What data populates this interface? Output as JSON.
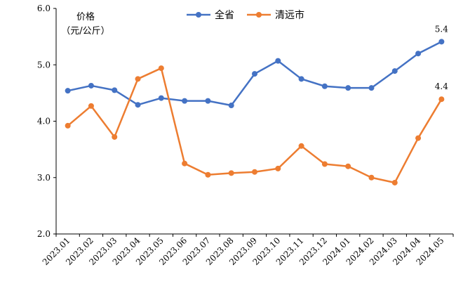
{
  "chart_data": {
    "type": "line",
    "ylabel_line1": "价格",
    "ylabel_line2": "（元/公斤）",
    "ylim": [
      2.0,
      6.0
    ],
    "yticks": [
      "2.0",
      "3.0",
      "4.0",
      "5.0",
      "6.0"
    ],
    "categories": [
      "2023.01",
      "2023.02",
      "2023.03",
      "2023.04",
      "2023.05",
      "2023.06",
      "2023.07",
      "2023.08",
      "2023.09",
      "2023.10",
      "2023.11",
      "2023.12",
      "2024.01",
      "2024.02",
      "2024.03",
      "2024.04",
      "2024.05"
    ],
    "series": [
      {
        "name": "全省",
        "color": "#4472C4",
        "values": [
          4.54,
          4.63,
          4.55,
          4.29,
          4.41,
          4.36,
          4.36,
          4.28,
          4.84,
          5.07,
          4.75,
          4.62,
          4.59,
          4.59,
          4.89,
          5.2,
          5.41
        ],
        "end_label": "5.4"
      },
      {
        "name": "清远市",
        "color": "#ED7D31",
        "values": [
          3.92,
          4.27,
          3.72,
          4.75,
          4.94,
          3.25,
          3.05,
          3.08,
          3.1,
          3.16,
          3.56,
          3.24,
          3.2,
          3.0,
          2.91,
          3.7,
          4.39
        ],
        "end_label": "4.4"
      }
    ],
    "legend_position": "top"
  }
}
